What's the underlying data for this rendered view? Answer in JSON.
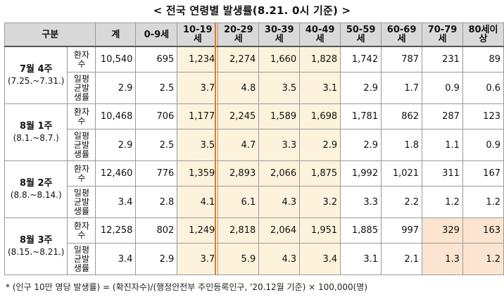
{
  "title": "< 전국 연령별 발생률(8.21. 0시 기준) >",
  "headers": [
    "구분",
    "계",
    "0-9세",
    "10-19세",
    "20-29세",
    "30-39세",
    "40-49세",
    "50-59세",
    "60-69세",
    "70-79세",
    "80세이상"
  ],
  "row_labels": {
    "count": "환자수",
    "rate": "일평균발생률"
  },
  "weeks": [
    {
      "week": "7월 4주",
      "range": "(7.25.~7.31.)",
      "count": [
        "10,540",
        "695",
        "1,234",
        "2,274",
        "1,660",
        "1,828",
        "1,742",
        "787",
        "231",
        "89"
      ],
      "rate": [
        "2.9",
        "2.5",
        "3.7",
        "4.8",
        "3.5",
        "3.1",
        "2.9",
        "1.7",
        "0.9",
        "0.6"
      ]
    },
    {
      "week": "8월 1주",
      "range": "(8.1.~8.7.)",
      "count": [
        "10,468",
        "706",
        "1,177",
        "2,245",
        "1,589",
        "1,698",
        "1,781",
        "862",
        "287",
        "123"
      ],
      "rate": [
        "2.9",
        "2.5",
        "3.5",
        "4.7",
        "3.3",
        "2.9",
        "2.9",
        "1.8",
        "1.1",
        "0.9"
      ]
    },
    {
      "week": "8월 2주",
      "range": "(8.8.~8.14.)",
      "count": [
        "12,460",
        "776",
        "1,359",
        "2,893",
        "2,066",
        "1,875",
        "1,992",
        "1,021",
        "311",
        "167"
      ],
      "rate": [
        "3.4",
        "2.8",
        "4.1",
        "6.1",
        "4.3",
        "3.2",
        "3.3",
        "2.2",
        "1.2",
        "1.2"
      ]
    },
    {
      "week": "8월 3주",
      "range": "(8.15.~8.21.)",
      "count": [
        "12,258",
        "802",
        "1,249",
        "2,818",
        "2,064",
        "1,951",
        "1,885",
        "997",
        "329",
        "163"
      ],
      "rate": [
        "3.4",
        "2.9",
        "3.7",
        "5.9",
        "4.3",
        "3.4",
        "3.1",
        "2.1",
        "1.3",
        "1.2"
      ]
    }
  ],
  "footnote": "* (인구 10만 명당 발생률) = (확진자수)/(행정안전부 주민등록인구, '20.12월 기준) × 100,000(명)",
  "colors": {
    "highlight": "#fdf3dc",
    "highlight_strong": "#fbe5d0",
    "divider": "#e47a1f",
    "header_bg": "#d9d9d9"
  }
}
